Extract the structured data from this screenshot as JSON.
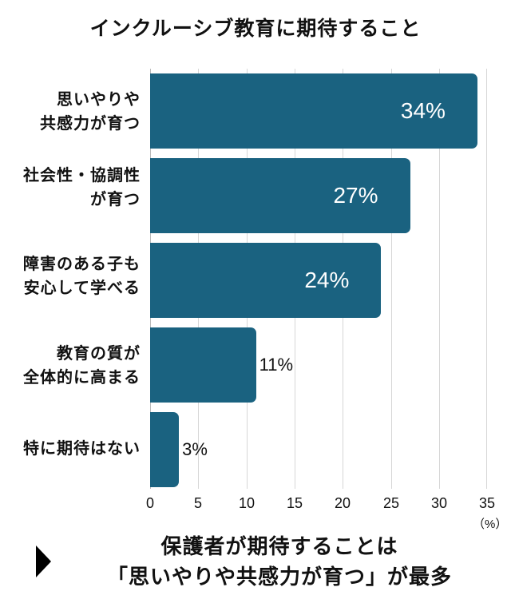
{
  "title": "インクルーシブ教育に期待すること",
  "chart_data": {
    "type": "bar",
    "orientation": "horizontal",
    "title": "インクルーシブ教育に期待すること",
    "categories": [
      "思いやりや共感力が育つ",
      "社会性・協調性が育つ",
      "障害のある子も安心して学べる",
      "教育の質が全体的に高まる",
      "特に期待はない"
    ],
    "category_lines": [
      [
        "思いやりや",
        "共感力が育つ"
      ],
      [
        "社会性・協調性",
        "が育つ"
      ],
      [
        "障害のある子も",
        "安心して学べる"
      ],
      [
        "教育の質が",
        "全体的に高まる"
      ],
      [
        "特に期待はない"
      ]
    ],
    "values": [
      34,
      27,
      24,
      11,
      3
    ],
    "value_labels": [
      "34%",
      "27%",
      "24%",
      "11%",
      "3%"
    ],
    "xlabel": "（%）",
    "ylabel": "",
    "xlim": [
      0,
      35
    ],
    "xticks": [
      "0",
      "5",
      "10",
      "15",
      "20",
      "25",
      "30",
      "35"
    ],
    "grid": true,
    "bar_color": "#1a6280",
    "legend": null
  },
  "axis": {
    "ticks": [
      "0",
      "5",
      "10",
      "15",
      "20",
      "25",
      "30",
      "35"
    ],
    "unit": "（%）"
  },
  "conclusion": {
    "line1": "保護者が期待することは",
    "line2": "「思いやりや共感力が育つ」が最多"
  },
  "colors": {
    "bar": "#1a6280",
    "grid": "#d6d6d6",
    "text": "#111111"
  }
}
